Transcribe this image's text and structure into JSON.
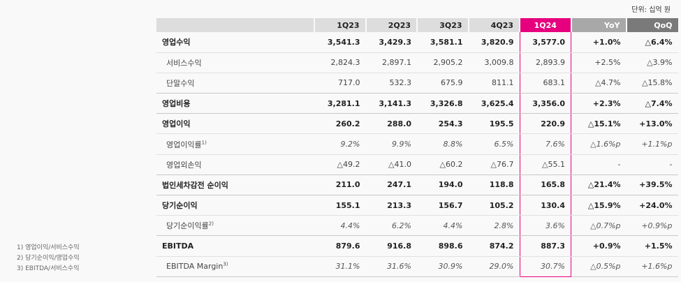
{
  "unit_label": "단위: 십억 원",
  "header": {
    "label": "",
    "cols": [
      "1Q23",
      "2Q23",
      "3Q23",
      "4Q23",
      "1Q24",
      "YoY",
      "QoQ"
    ]
  },
  "rows": [
    {
      "label": "영업수익",
      "sup": "",
      "vals": [
        "3,541.3",
        "3,429.3",
        "3,581.1",
        "3,820.9",
        "3,577.0",
        "+1.0%",
        "△6.4%"
      ]
    },
    {
      "label": "서비스수익",
      "sup": "",
      "vals": [
        "2,824.3",
        "2,897.1",
        "2,905.2",
        "3,009.8",
        "2,893.9",
        "+2.5%",
        "△3.9%"
      ]
    },
    {
      "label": "단말수익",
      "sup": "",
      "vals": [
        "717.0",
        "532.3",
        "675.9",
        "811.1",
        "683.1",
        "△4.7%",
        "△15.8%"
      ]
    },
    {
      "label": "영업비용",
      "sup": "",
      "vals": [
        "3,281.1",
        "3,141.3",
        "3,326.8",
        "3,625.4",
        "3,356.0",
        "+2.3%",
        "△7.4%"
      ]
    },
    {
      "label": "영업이익",
      "sup": "",
      "vals": [
        "260.2",
        "288.0",
        "254.3",
        "195.5",
        "220.9",
        "△15.1%",
        "+13.0%"
      ]
    },
    {
      "label": "영업이익률",
      "sup": "1)",
      "vals": [
        "9.2%",
        "9.9%",
        "8.8%",
        "6.5%",
        "7.6%",
        "△1.6%p",
        "+1.1%p"
      ]
    },
    {
      "label": "영업외손익",
      "sup": "",
      "vals": [
        "△49.2",
        "△41.0",
        "△60.2",
        "△76.7",
        "△55.1",
        "-",
        "-"
      ]
    },
    {
      "label": "법인세차감전 순이익",
      "sup": "",
      "vals": [
        "211.0",
        "247.1",
        "194.0",
        "118.8",
        "165.8",
        "△21.4%",
        "+39.5%"
      ]
    },
    {
      "label": "당기순이익",
      "sup": "",
      "vals": [
        "155.1",
        "213.3",
        "156.7",
        "105.2",
        "130.4",
        "△15.9%",
        "+24.0%"
      ]
    },
    {
      "label": "당기순이익률",
      "sup": "2)",
      "vals": [
        "4.4%",
        "6.2%",
        "4.4%",
        "2.8%",
        "3.6%",
        "△0.7%p",
        "+0.9%p"
      ]
    },
    {
      "label": "EBITDA",
      "sup": "",
      "vals": [
        "879.6",
        "916.8",
        "898.6",
        "874.2",
        "887.3",
        "+0.9%",
        "+1.5%"
      ]
    },
    {
      "label": "EBITDA Margin",
      "sup": "3)",
      "vals": [
        "31.1%",
        "31.6%",
        "30.9%",
        "29.0%",
        "30.7%",
        "△0.5%p",
        "+1.6%p"
      ]
    }
  ],
  "footnotes": [
    "1) 영업이익/서비스수익",
    "2) 당기순이익/영업수익",
    "3) EBITDA/서비스수익"
  ],
  "colors": {
    "highlight": "#e6007e",
    "yoy_header": "#a8a8a8",
    "qoq_header": "#7a7a7a"
  }
}
